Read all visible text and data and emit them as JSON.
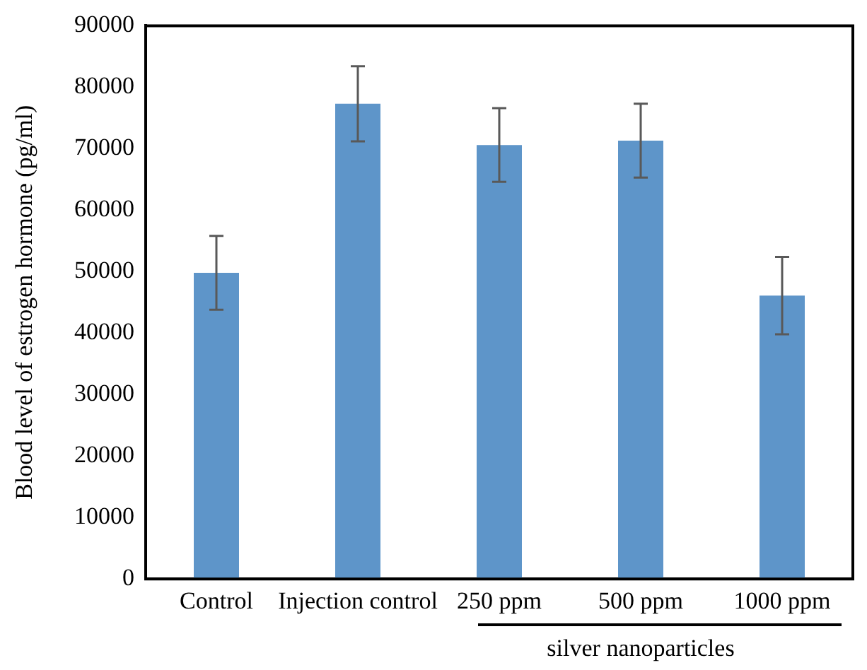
{
  "chart_data": {
    "type": "bar",
    "ylabel": "Blood level of estrogen hormone (pg/ml)",
    "categories": [
      "Control",
      "Injection control",
      "250 ppm",
      "500 ppm",
      "1000 ppm"
    ],
    "values": [
      49800,
      77300,
      70600,
      71300,
      46100
    ],
    "errors": [
      6000,
      6100,
      6000,
      6000,
      6300
    ],
    "color": "#5e95c9",
    "ylim": [
      0,
      90000
    ],
    "yticks": [
      0,
      10000,
      20000,
      30000,
      40000,
      50000,
      60000,
      70000,
      80000,
      90000
    ],
    "grid": false,
    "legend": false,
    "annotations": [
      "silver nanoparticles"
    ]
  }
}
